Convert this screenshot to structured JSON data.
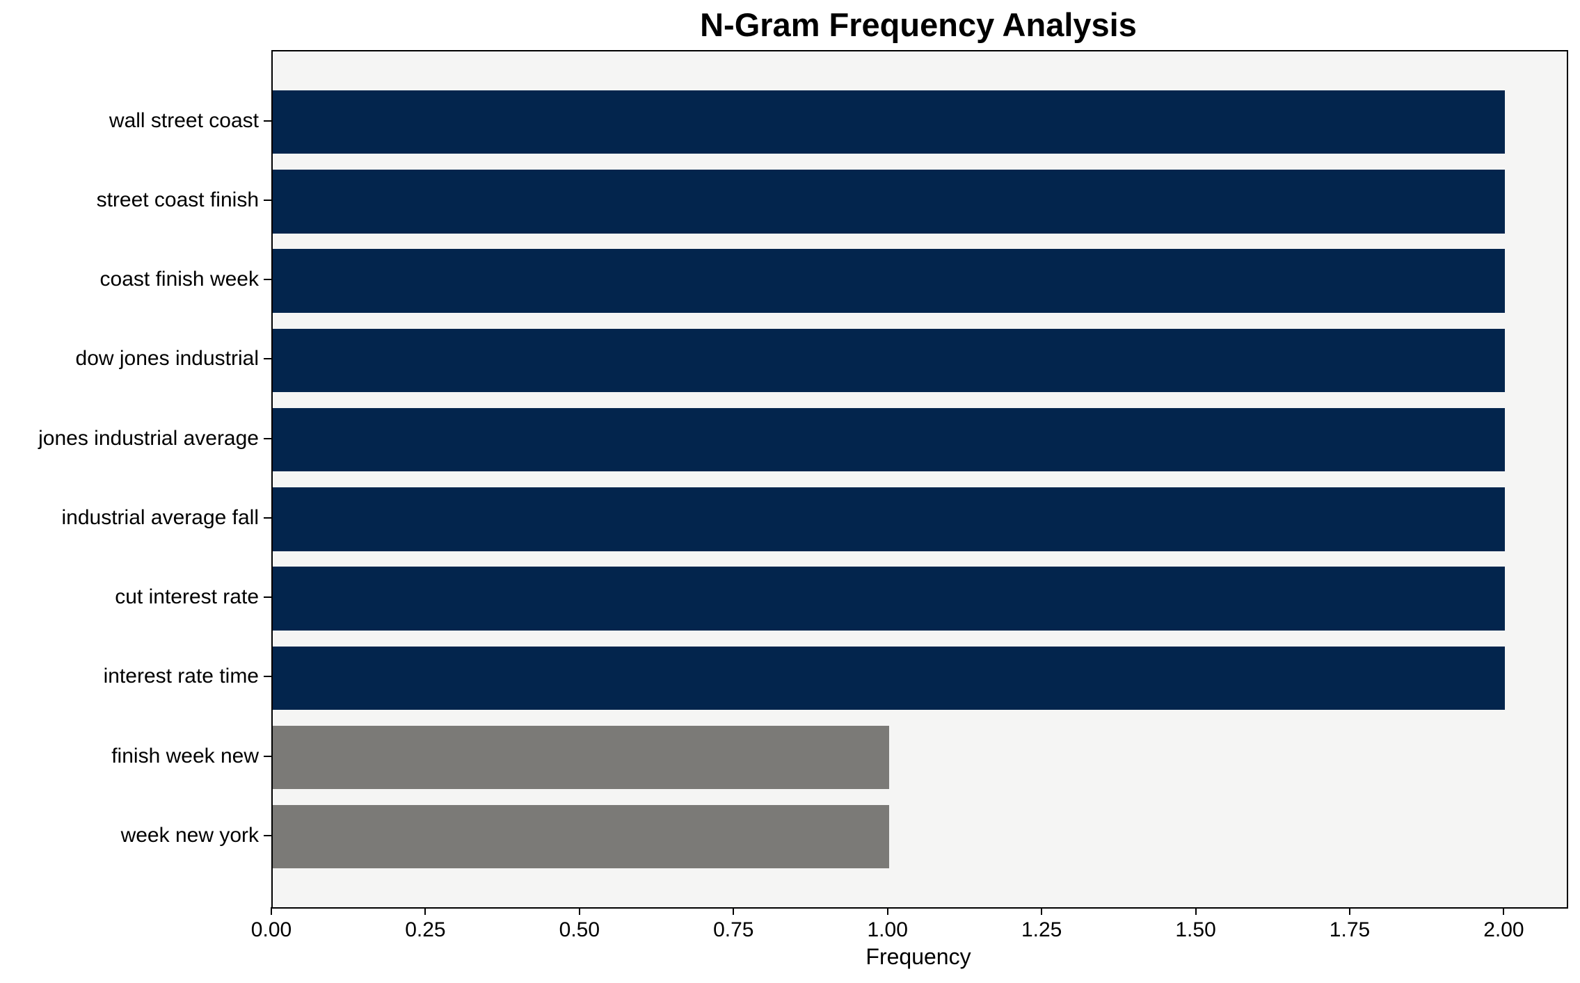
{
  "chart_data": {
    "type": "bar",
    "orientation": "horizontal",
    "title": "N-Gram Frequency Analysis",
    "xlabel": "Frequency",
    "ylabel": "",
    "categories": [
      "wall street coast",
      "street coast finish",
      "coast finish week",
      "dow jones industrial",
      "jones industrial average",
      "industrial average fall",
      "cut interest rate",
      "interest rate time",
      "finish week new",
      "week new york"
    ],
    "values": [
      2,
      2,
      2,
      2,
      2,
      2,
      2,
      2,
      1,
      1
    ],
    "bar_colors": [
      "#03254d",
      "#03254d",
      "#03254d",
      "#03254d",
      "#03254d",
      "#03254d",
      "#03254d",
      "#03254d",
      "#7b7a77",
      "#7b7a77"
    ],
    "xlim": [
      0,
      2.1
    ],
    "xticks": [
      0,
      0.25,
      0.5,
      0.75,
      1.0,
      1.25,
      1.5,
      1.75,
      2.0
    ],
    "xtick_labels": [
      "0.00",
      "0.25",
      "0.50",
      "0.75",
      "1.00",
      "1.25",
      "1.50",
      "1.75",
      "2.00"
    ],
    "grid": false,
    "legend": null,
    "colors": {
      "bar_primary": "#03254d",
      "bar_secondary": "#7b7a77",
      "plot_background": "#f5f5f4",
      "figure_background": "#ffffff",
      "spine": "#000000",
      "text": "#000000"
    }
  }
}
